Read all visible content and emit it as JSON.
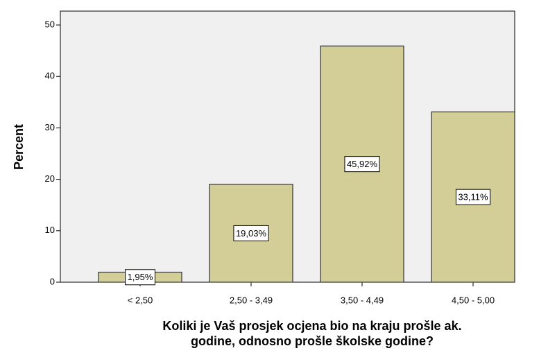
{
  "chart_data": {
    "type": "bar",
    "categories": [
      "< 2,50",
      "2,50 - 3,49",
      "3,50 - 4,49",
      "4,50 - 5,00"
    ],
    "values": [
      1.95,
      19.03,
      45.92,
      33.11
    ],
    "value_labels": [
      "1,95%",
      "19,03%",
      "45,92%",
      "33,11%"
    ],
    "color": "#d3ce97",
    "ylabel": "Percent",
    "xlabel": [
      "Koliki je Vaš prosjek ocjena bio na kraju prošle ak.",
      "godine, odnosno prošle školske godine?"
    ],
    "ylim": [
      0,
      52.7
    ],
    "yticks": [
      0,
      10,
      20,
      30,
      40,
      50
    ],
    "grid": false
  }
}
